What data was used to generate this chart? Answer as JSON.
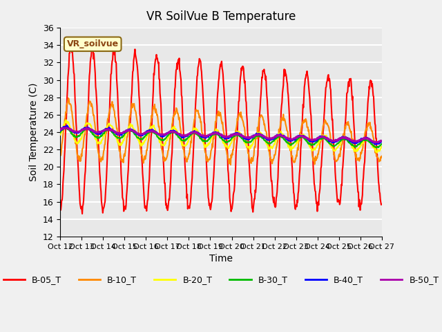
{
  "title": "VR SoilVue B Temperature",
  "xlabel": "Time",
  "ylabel": "Soil Temperature (C)",
  "ylim": [
    12,
    36
  ],
  "yticks": [
    12,
    14,
    16,
    18,
    20,
    22,
    24,
    26,
    28,
    30,
    32,
    34,
    36
  ],
  "x_tick_labels": [
    "Oct 12",
    "Oct 13",
    "Oct 14",
    "Oct 15",
    "Oct 16",
    "Oct 17",
    "Oct 18",
    "Oct 19",
    "Oct 20",
    "Oct 21",
    "Oct 22",
    "Oct 23",
    "Oct 24",
    "Oct 25",
    "Oct 26",
    "Oct 27"
  ],
  "legend_entries": [
    "B-05_T",
    "B-10_T",
    "B-20_T",
    "B-30_T",
    "B-40_T",
    "B-50_T"
  ],
  "line_colors": [
    "#ff0000",
    "#ff8800",
    "#ffff00",
    "#00bb00",
    "#0000ff",
    "#aa00aa"
  ],
  "line_widths": [
    1.5,
    1.5,
    1.5,
    1.5,
    2.0,
    2.0
  ],
  "annotation_text": "VR_soilvue",
  "bg_color": "#e8e8e8",
  "grid_color": "#ffffff",
  "n_days": 15,
  "points_per_day": 48
}
